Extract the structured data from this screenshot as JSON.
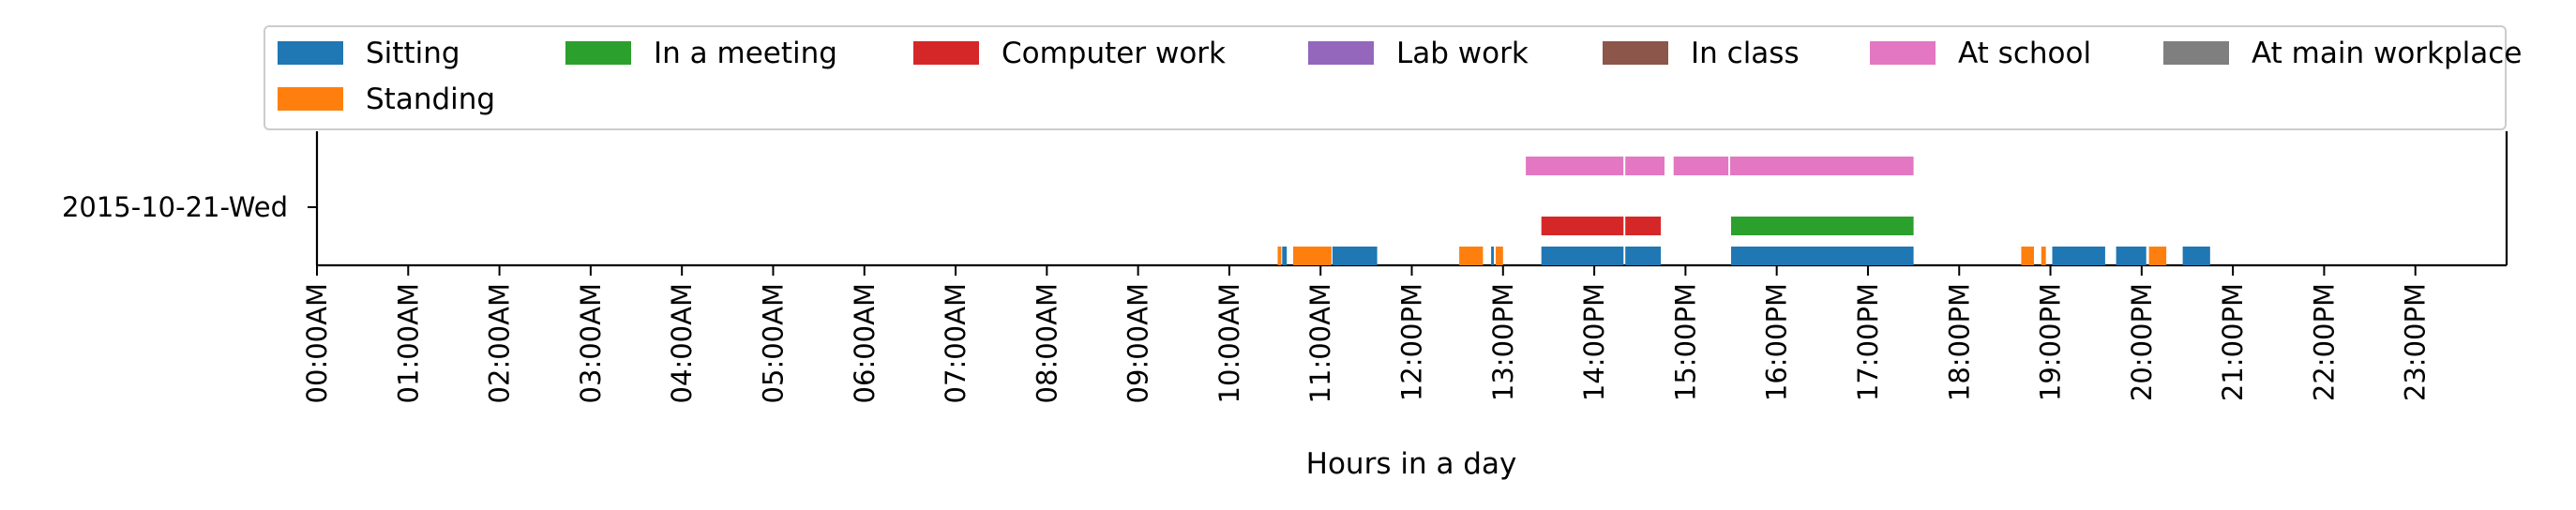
{
  "chart_data": {
    "type": "timeline",
    "title": "",
    "xlabel": "Hours in a day",
    "ylabel": "",
    "xlim": [
      0,
      24
    ],
    "x_ticks": [
      {
        "value": 0,
        "label": "00:00AM"
      },
      {
        "value": 1,
        "label": "01:00AM"
      },
      {
        "value": 2,
        "label": "02:00AM"
      },
      {
        "value": 3,
        "label": "03:00AM"
      },
      {
        "value": 4,
        "label": "04:00AM"
      },
      {
        "value": 5,
        "label": "05:00AM"
      },
      {
        "value": 6,
        "label": "06:00AM"
      },
      {
        "value": 7,
        "label": "07:00AM"
      },
      {
        "value": 8,
        "label": "08:00AM"
      },
      {
        "value": 9,
        "label": "09:00AM"
      },
      {
        "value": 10,
        "label": "10:00AM"
      },
      {
        "value": 11,
        "label": "11:00AM"
      },
      {
        "value": 12,
        "label": "12:00PM"
      },
      {
        "value": 13,
        "label": "13:00PM"
      },
      {
        "value": 14,
        "label": "14:00PM"
      },
      {
        "value": 15,
        "label": "15:00PM"
      },
      {
        "value": 16,
        "label": "16:00PM"
      },
      {
        "value": 17,
        "label": "17:00PM"
      },
      {
        "value": 18,
        "label": "18:00PM"
      },
      {
        "value": 19,
        "label": "19:00PM"
      },
      {
        "value": 20,
        "label": "20:00PM"
      },
      {
        "value": 21,
        "label": "21:00PM"
      },
      {
        "value": 22,
        "label": "22:00PM"
      },
      {
        "value": 23,
        "label": "23:00PM"
      }
    ],
    "y_category": "2015-10-21-Wed",
    "legend_position": "top",
    "legend": [
      {
        "name": "Sitting",
        "color": "#1f77b4"
      },
      {
        "name": "In a meeting",
        "color": "#2ca02c"
      },
      {
        "name": "Computer work",
        "color": "#d62728"
      },
      {
        "name": "Lab work",
        "color": "#9467bd"
      },
      {
        "name": "In class",
        "color": "#8c564b"
      },
      {
        "name": "At school",
        "color": "#e377c2"
      },
      {
        "name": "At main workplace",
        "color": "#7f7f7f"
      },
      {
        "name": "Standing",
        "color": "#ff7f0e"
      }
    ],
    "series": [
      {
        "name": "Sitting",
        "color": "#1f77b4",
        "lane": 0,
        "intervals": [
          [
            10.58,
            10.63
          ],
          [
            11.13,
            11.62
          ],
          [
            12.87,
            12.9
          ],
          [
            13.42,
            14.32
          ],
          [
            14.34,
            14.73
          ],
          [
            15.5,
            17.5
          ],
          [
            19.02,
            19.6
          ],
          [
            19.72,
            20.05
          ],
          [
            20.45,
            20.75
          ]
        ]
      },
      {
        "name": "Standing",
        "color": "#ff7f0e",
        "lane": 0,
        "intervals": [
          [
            10.53,
            10.57
          ],
          [
            10.7,
            11.12
          ],
          [
            12.52,
            12.78
          ],
          [
            12.92,
            13.0
          ],
          [
            18.68,
            18.82
          ],
          [
            18.9,
            18.95
          ],
          [
            20.08,
            20.27
          ]
        ]
      },
      {
        "name": "Computer work",
        "color": "#d62728",
        "lane": 1,
        "intervals": [
          [
            13.42,
            14.32
          ],
          [
            14.34,
            14.73
          ]
        ]
      },
      {
        "name": "In a meeting",
        "color": "#2ca02c",
        "lane": 1,
        "intervals": [
          [
            15.5,
            17.5
          ]
        ]
      },
      {
        "name": "At school",
        "color": "#e377c2",
        "lane": 2,
        "intervals": [
          [
            13.25,
            14.32
          ],
          [
            14.34,
            14.77
          ],
          [
            14.87,
            15.47
          ],
          [
            15.49,
            17.5
          ]
        ]
      }
    ]
  }
}
